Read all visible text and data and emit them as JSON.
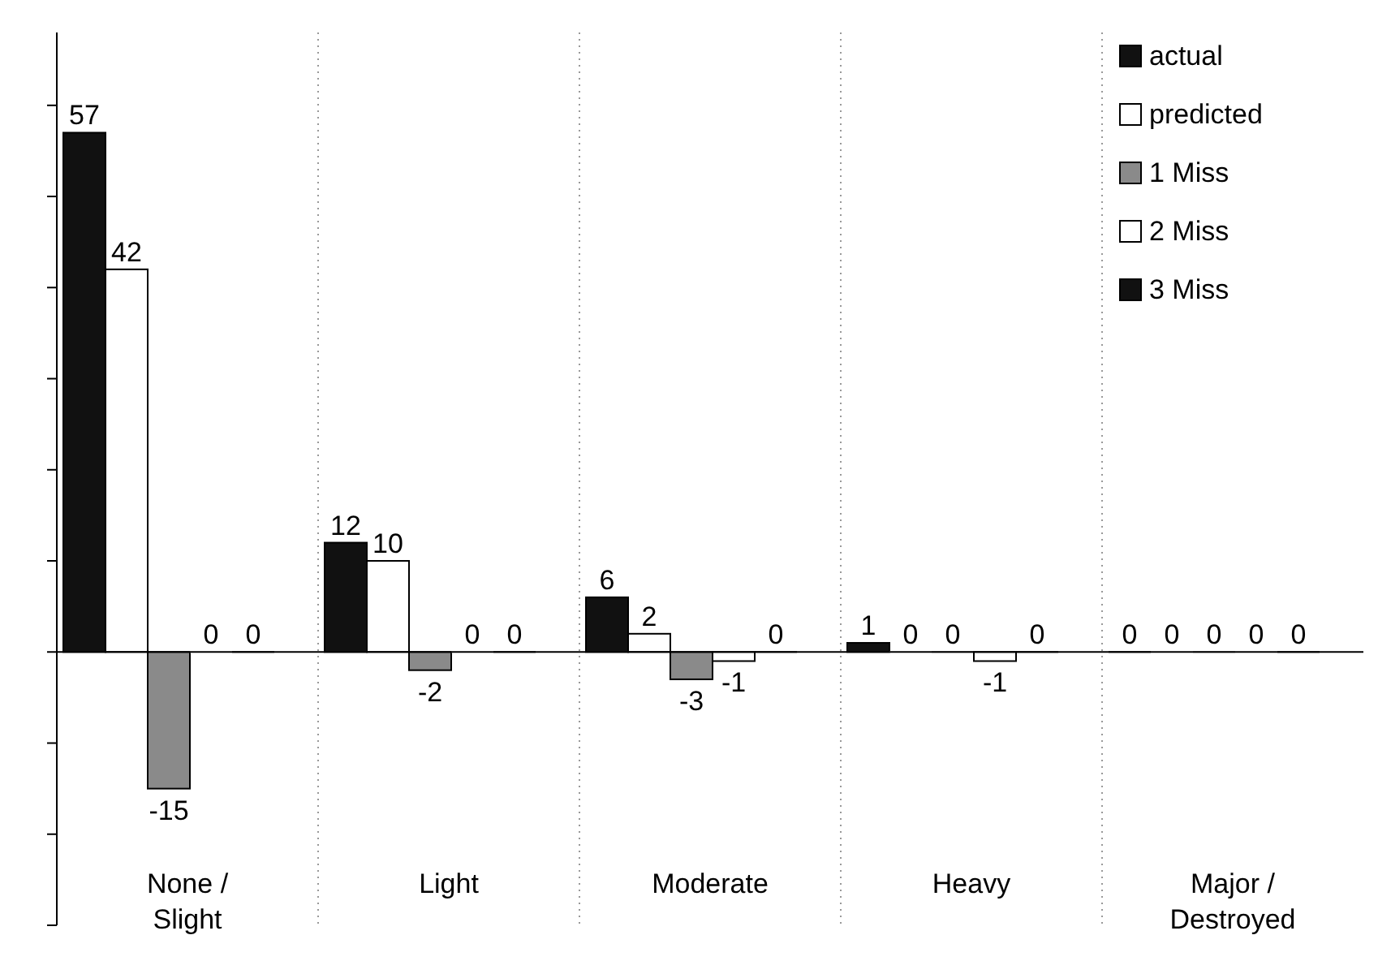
{
  "chart_data": {
    "type": "bar",
    "categories": [
      "None /\nSlight",
      "Light",
      "Moderate",
      "Heavy",
      "Major /\nDestroyed"
    ],
    "series": [
      {
        "name": "actual",
        "color": "#111111",
        "values": [
          57,
          12,
          6,
          1,
          0
        ]
      },
      {
        "name": "predicted",
        "color": "#ffffff",
        "values": [
          42,
          10,
          2,
          0,
          0
        ]
      },
      {
        "name": "1 Miss",
        "color": "#8a8a8a",
        "values": [
          -15,
          -2,
          -3,
          0,
          0
        ]
      },
      {
        "name": "2 Miss",
        "color": "#ffffff",
        "values": [
          0,
          0,
          -1,
          -1,
          0
        ]
      },
      {
        "name": "3 Miss",
        "color": "#111111",
        "values": [
          0,
          0,
          0,
          0,
          0
        ]
      }
    ],
    "ylim": [
      -30,
      68
    ],
    "yticks": [
      {
        "value": -30,
        "label": null
      },
      {
        "value": -20,
        "label": null
      },
      {
        "value": -10,
        "label": null
      },
      {
        "value": 0,
        "label": null
      },
      {
        "value": 10,
        "label": null
      },
      {
        "value": 20,
        "label": null
      },
      {
        "value": 30,
        "label": null
      },
      {
        "value": 40,
        "label": null
      },
      {
        "value": 50,
        "label": null
      },
      {
        "value": 60,
        "label": null
      }
    ],
    "tick_labels": "x",
    "data_labels": true,
    "grid": "x",
    "legend": "top right"
  }
}
